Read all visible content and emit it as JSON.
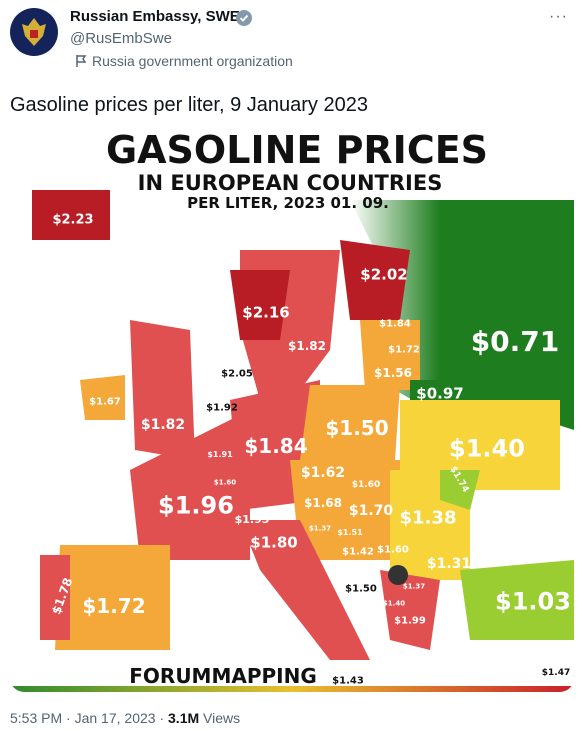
{
  "header": {
    "name": "Russian Embassy, SWE",
    "handle": "@RusEmbSwe",
    "affiliation": "Russia government organization",
    "more": "···"
  },
  "tweet": {
    "text": "Gasoline prices per liter, 9 January 2023"
  },
  "map": {
    "title": [
      "GASOLINE PRICES",
      "IN EUROPEAN COUNTRIES",
      "PER LITER, 2023 01. 09."
    ],
    "credit": "FORUMMAPPING",
    "labels": [
      "$2.23",
      "$2.02",
      "$2.16",
      "$1.82",
      "$1.84",
      "$1.72",
      "$1.56",
      "$0.71",
      "$0.97",
      "$2.05",
      "$1.67",
      "$1.92",
      "$1.82",
      "$1.91",
      "$1.60",
      "$1.84",
      "$1.50",
      "$1.40",
      "$1.96",
      "$1.93",
      "$1.62",
      "$1.60",
      "$1.68",
      "$1.70",
      "$1.74",
      "$1.38",
      "$1.37",
      "$1.51",
      "$1.42",
      "$1.60",
      "$1.31",
      "$1.80",
      "$1.50",
      "$1.37",
      "$1.40",
      "$1.99",
      "$1.03",
      "$1.78",
      "$1.72",
      "$1.47",
      "$1.43"
    ]
  },
  "footer": {
    "time": "5:53 PM",
    "separator": "·",
    "date": "Jan 17, 2023",
    "views_count": "3.1M",
    "views_label": "Views"
  }
}
